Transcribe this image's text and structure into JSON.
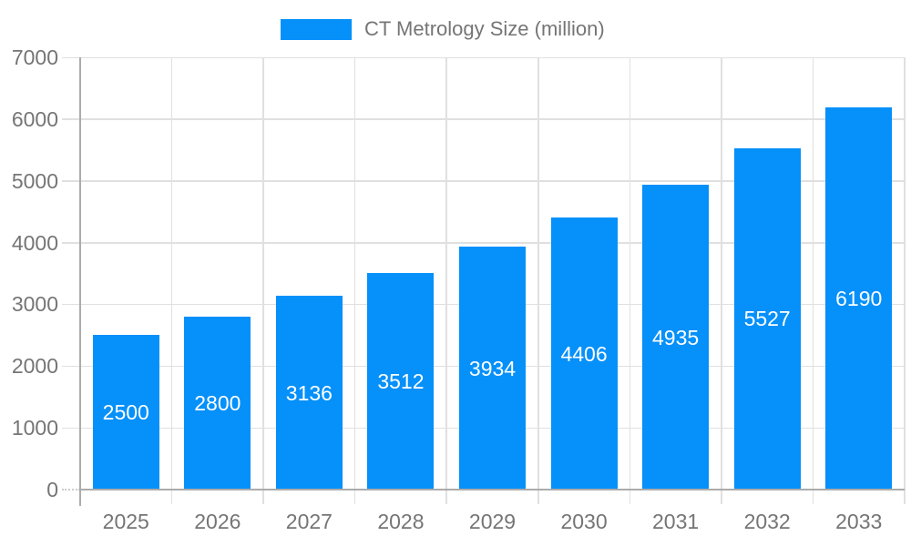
{
  "chart_data": {
    "type": "bar",
    "title": "CT Metrology Size (million)",
    "legend": {
      "position": "top",
      "label": "CT Metrology Size (million)"
    },
    "categories": [
      "2025",
      "2026",
      "2027",
      "2028",
      "2029",
      "2030",
      "2031",
      "2032",
      "2033"
    ],
    "series": [
      {
        "name": "CT Metrology Size (million)",
        "values": [
          2500,
          2800,
          3136,
          3512,
          3934,
          4406,
          4935,
          5527,
          6190
        ]
      }
    ],
    "bar_value_labels": [
      "2500",
      "2800",
      "3136",
      "3512",
      "3934",
      "4406",
      "4935",
      "5527",
      "6190"
    ],
    "xlabel": "",
    "ylabel": "",
    "ylim": [
      0,
      7000
    ],
    "yticks": [
      0,
      1000,
      2000,
      3000,
      4000,
      5000,
      6000,
      7000
    ],
    "ytick_labels": [
      "0",
      "1000",
      "2000",
      "3000",
      "4000",
      "5000",
      "6000",
      "7000"
    ],
    "grid": true,
    "colors": {
      "bar": "#0590fa",
      "bar_label": "#ffffff",
      "axis_text": "#757575",
      "legend_text": "#757575",
      "grid_line": "#e0e0e0",
      "axis_line": "#ababab"
    }
  }
}
